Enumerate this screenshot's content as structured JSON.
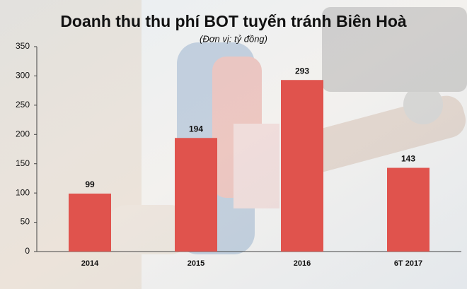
{
  "chart_data": {
    "type": "bar",
    "title": "Doanh thu thu phí BOT tuyến tránh Biên Hoà",
    "subtitle": "(Đơn vị: tỷ đồng)",
    "categories": [
      "2014",
      "2015",
      "2016",
      "6T 2017"
    ],
    "values": [
      99,
      194,
      293,
      143
    ],
    "color": "#e0534d",
    "ylim": [
      0,
      350
    ],
    "yticks": [
      0,
      50,
      100,
      150,
      200,
      250,
      300,
      350
    ],
    "grid": false
  }
}
